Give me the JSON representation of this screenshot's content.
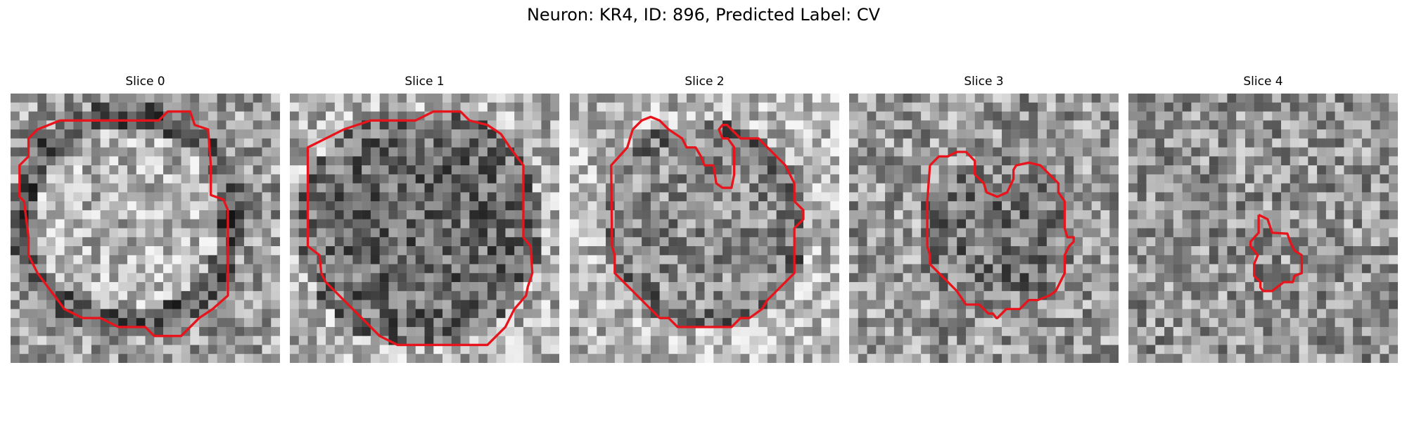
{
  "figure": {
    "title": "Neuron: KR4, ID: 896, Predicted Label: CV"
  },
  "panels": [
    {
      "title": "Slice 0"
    },
    {
      "title": "Slice 1"
    },
    {
      "title": "Slice 2"
    },
    {
      "title": "Slice 3"
    },
    {
      "title": "Slice 4"
    }
  ],
  "colors": {
    "contour": "#e8141c",
    "background": "#ffffff"
  },
  "image_content": "grayscale noisy microscopy slices with red segmentation contours"
}
